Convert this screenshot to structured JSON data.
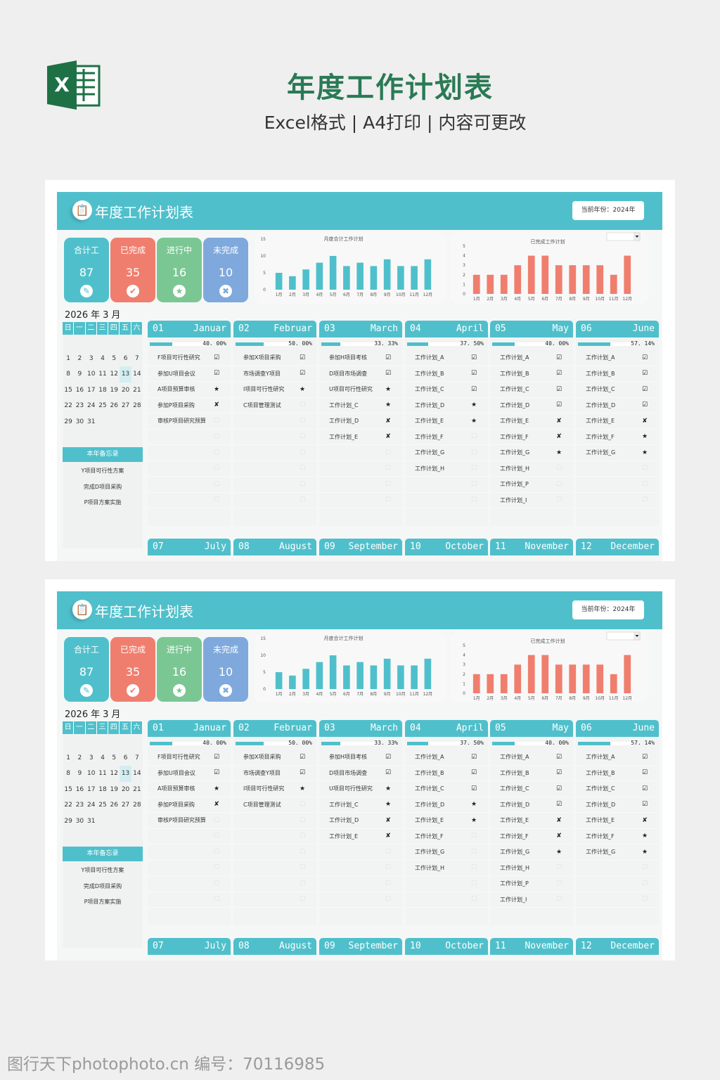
{
  "banner": {
    "title": "年度工作计划表",
    "subtitle": "Excel格式 | A4打印 | 内容可更改",
    "logo_letter": "X"
  },
  "panel": {
    "header_title": "年度工作计划表",
    "year_button": "当前年份：2024年",
    "stats": [
      {
        "label": "合计工",
        "value": "87",
        "icon": "document-icon",
        "glyph": "✎",
        "color": "#4fc0cb"
      },
      {
        "label": "已完成",
        "value": "35",
        "icon": "check-icon",
        "glyph": "✔",
        "color": "#f07e6e"
      },
      {
        "label": "进行中",
        "value": "16",
        "icon": "star-icon",
        "glyph": "★",
        "color": "#7bc794"
      },
      {
        "label": "未完成",
        "value": "10",
        "icon": "x-icon",
        "glyph": "✖",
        "color": "#7fa9dc"
      }
    ],
    "calendar": {
      "year": "2026",
      "year_unit": "年",
      "month": "3",
      "month_unit": "月",
      "weekdays": [
        "日",
        "一",
        "二",
        "三",
        "四",
        "五",
        "六"
      ],
      "days": [
        "",
        "",
        "",
        "",
        "",
        "",
        "",
        "1",
        "2",
        "3",
        "4",
        "5",
        "6",
        "7",
        "8",
        "9",
        "10",
        "11",
        "12",
        "13",
        "14",
        "15",
        "16",
        "17",
        "18",
        "19",
        "20",
        "21",
        "22",
        "23",
        "24",
        "25",
        "26",
        "27",
        "28",
        "29",
        "30",
        "31",
        "",
        "",
        "",
        ""
      ],
      "today": "13"
    },
    "memo": {
      "title": "本年备忘录",
      "items": [
        "Y项目可行性方案",
        "完成D项目采购",
        "P项目方案实施"
      ]
    },
    "months": [
      {
        "num": "01",
        "name": "Januar",
        "progress": "40. 00%",
        "fraction": 0.4,
        "items": [
          [
            "F项目可行性研究",
            "done"
          ],
          [
            "参加U项目会议",
            "done"
          ],
          [
            "A项目预算审核",
            "star"
          ],
          [
            "参加P项目采购",
            "fail"
          ],
          [
            "审核P项目研究预算",
            "empty"
          ],
          [
            "",
            "empty"
          ],
          [
            "",
            "empty"
          ],
          [
            "",
            "empty"
          ],
          [
            "",
            "empty"
          ],
          [
            "",
            "empty"
          ]
        ]
      },
      {
        "num": "02",
        "name": "Februar",
        "progress": "50. 00%",
        "fraction": 0.5,
        "items": [
          [
            "参加X项目采购",
            "done"
          ],
          [
            "市场调查Y项目",
            "done"
          ],
          [
            "I项目可行性研究",
            "star"
          ],
          [
            "C项目管理测试",
            "empty"
          ],
          [
            "",
            "empty"
          ],
          [
            "",
            "empty"
          ],
          [
            "",
            "empty"
          ],
          [
            "",
            "empty"
          ],
          [
            "",
            "empty"
          ],
          [
            "",
            "empty"
          ]
        ]
      },
      {
        "num": "03",
        "name": "March",
        "progress": "33. 33%",
        "fraction": 0.3333,
        "items": [
          [
            "参加H项目考核",
            "done"
          ],
          [
            "D项目市场调查",
            "done"
          ],
          [
            "U项目可行性研究",
            "star"
          ],
          [
            "工作计划_C",
            "star"
          ],
          [
            "工作计划_D",
            "fail"
          ],
          [
            "工作计划_E",
            "fail"
          ],
          [
            "",
            "empty"
          ],
          [
            "",
            "empty"
          ],
          [
            "",
            "empty"
          ],
          [
            "",
            "empty"
          ]
        ]
      },
      {
        "num": "04",
        "name": "April",
        "progress": "37. 50%",
        "fraction": 0.375,
        "items": [
          [
            "工作计划_A",
            "done"
          ],
          [
            "工作计划_B",
            "done"
          ],
          [
            "工作计划_C",
            "done"
          ],
          [
            "工作计划_D",
            "star"
          ],
          [
            "工作计划_E",
            "star"
          ],
          [
            "工作计划_F",
            "empty"
          ],
          [
            "工作计划_G",
            "empty"
          ],
          [
            "工作计划_H",
            "empty"
          ],
          [
            "",
            "empty"
          ],
          [
            "",
            "empty"
          ]
        ]
      },
      {
        "num": "05",
        "name": "May",
        "progress": "40. 00%",
        "fraction": 0.4,
        "items": [
          [
            "工作计划_A",
            "done"
          ],
          [
            "工作计划_B",
            "done"
          ],
          [
            "工作计划_C",
            "done"
          ],
          [
            "工作计划_D",
            "done"
          ],
          [
            "工作计划_E",
            "fail"
          ],
          [
            "工作计划_F",
            "fail"
          ],
          [
            "工作计划_G",
            "star"
          ],
          [
            "工作计划_H",
            "empty"
          ],
          [
            "工作计划_P",
            "empty"
          ],
          [
            "工作计划_I",
            "empty"
          ]
        ]
      },
      {
        "num": "06",
        "name": "June",
        "progress": "57. 14%",
        "fraction": 0.5714,
        "items": [
          [
            "工作计划_A",
            "done"
          ],
          [
            "工作计划_B",
            "done"
          ],
          [
            "工作计划_C",
            "done"
          ],
          [
            "工作计划_D",
            "done"
          ],
          [
            "工作计划_E",
            "fail"
          ],
          [
            "工作计划_F",
            "star"
          ],
          [
            "工作计划_G",
            "star"
          ],
          [
            "",
            "empty"
          ],
          [
            "",
            "empty"
          ],
          [
            "",
            "empty"
          ]
        ]
      }
    ],
    "lower_months": [
      {
        "num": "07",
        "name": "July"
      },
      {
        "num": "08",
        "name": "August"
      },
      {
        "num": "09",
        "name": "September"
      },
      {
        "num": "10",
        "name": "October"
      },
      {
        "num": "11",
        "name": "November"
      },
      {
        "num": "12",
        "name": "December"
      }
    ],
    "status_glyphs": {
      "done": "☑",
      "star": "★",
      "fail": "✘",
      "empty": "☐"
    }
  },
  "chart_data": [
    {
      "type": "bar",
      "title": "月度合计工作计划",
      "categories": [
        "1月",
        "2月",
        "3月",
        "4月",
        "5月",
        "6月",
        "7月",
        "8月",
        "9月",
        "10月",
        "11月",
        "12月"
      ],
      "values": [
        5,
        4,
        6,
        8,
        10,
        7,
        8,
        7,
        9,
        7,
        7,
        9
      ],
      "ylim": [
        0,
        15
      ],
      "yticks": [
        0,
        5,
        10,
        15
      ],
      "color": "#4fc0cb",
      "grid": false
    },
    {
      "type": "bar",
      "title": "已完成工作计划",
      "categories": [
        "1月",
        "2月",
        "3月",
        "4月",
        "5月",
        "6月",
        "7月",
        "8月",
        "9月",
        "10月",
        "11月",
        "12月"
      ],
      "values": [
        2,
        2,
        2,
        3,
        4,
        4,
        3,
        3,
        3,
        3,
        2,
        4
      ],
      "ylim": [
        0,
        5
      ],
      "yticks": [
        0,
        1,
        2,
        3,
        4,
        5
      ],
      "color": "#f07e6e",
      "grid": false
    }
  ],
  "watermark": "图行天下photophoto.cn  编号：70116985"
}
